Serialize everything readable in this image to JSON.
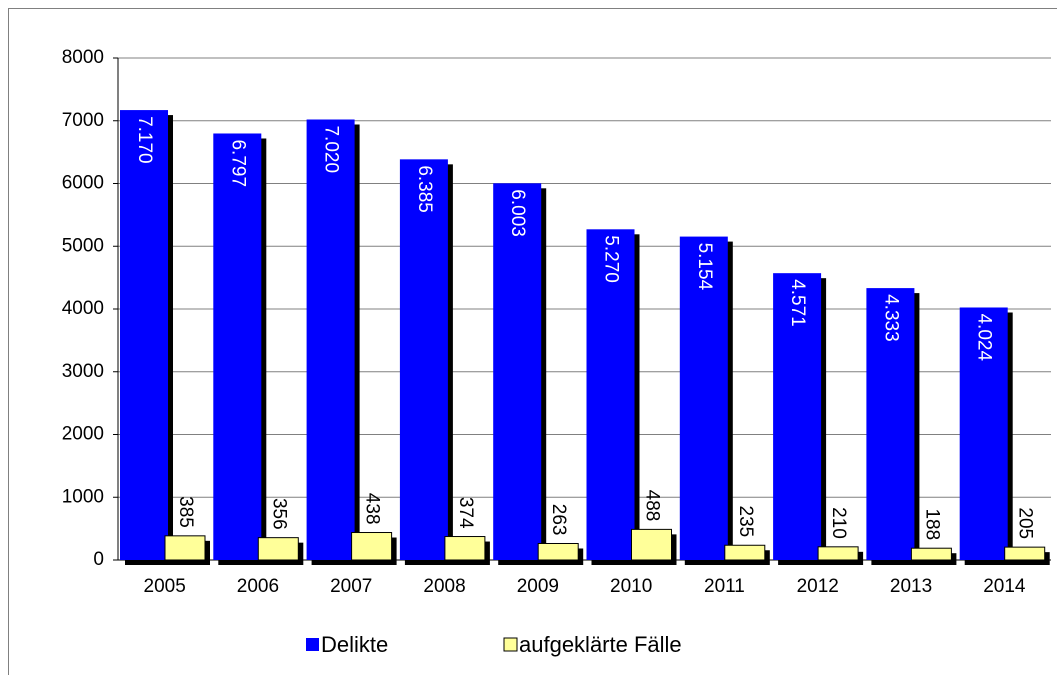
{
  "chart_data": {
    "type": "bar",
    "categories": [
      "2005",
      "2006",
      "2007",
      "2008",
      "2009",
      "2010",
      "2011",
      "2012",
      "2013",
      "2014"
    ],
    "series": [
      {
        "name": "Delikte",
        "color": "#0000ff",
        "values": [
          7170,
          6797,
          7020,
          6385,
          6003,
          5270,
          5154,
          4571,
          4333,
          4024
        ],
        "value_labels": [
          "7.170",
          "6.797",
          "7.020",
          "6.385",
          "6.003",
          "5.270",
          "5.154",
          "4.571",
          "4.333",
          "4.024"
        ]
      },
      {
        "name": "aufgeklärte Fälle",
        "color": "#ffff99",
        "values": [
          385,
          356,
          438,
          374,
          263,
          488,
          235,
          210,
          188,
          205
        ]
      }
    ],
    "ylim": [
      0,
      8000
    ],
    "yticks": [
      0,
      1000,
      2000,
      3000,
      4000,
      5000,
      6000,
      7000,
      8000
    ],
    "grid": true,
    "legend": "bottom"
  }
}
